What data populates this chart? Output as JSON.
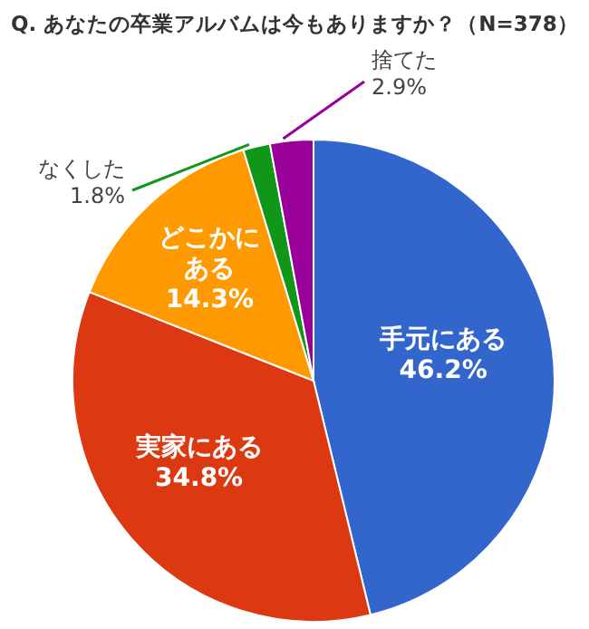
{
  "chart_data": {
    "type": "pie",
    "title": "Q. あなたの卒業アルバムは今もありますか？（N=378）",
    "categories": [
      "手元にある",
      "実家にある",
      "どこかにある",
      "なくした",
      "捨てた"
    ],
    "values": [
      46.2,
      34.8,
      14.3,
      1.8,
      2.9
    ],
    "value_labels": [
      "46.2%",
      "34.8%",
      "14.3%",
      "1.8%",
      "2.9%"
    ],
    "colors": [
      "#3366cc",
      "#dc3912",
      "#ff9900",
      "#109618",
      "#990099"
    ],
    "legend": false
  }
}
